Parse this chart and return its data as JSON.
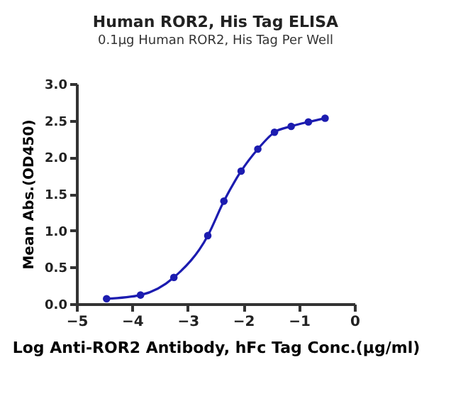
{
  "chart_data": {
    "type": "line",
    "title": "Human ROR2, His Tag ELISA",
    "subtitle": "0.1μg Human ROR2, His Tag Per Well",
    "xlabel": "Log Anti-ROR2 Antibody, hFc Tag Conc.(μg/ml)",
    "ylabel": "Mean Abs.(OD450)",
    "x": [
      -4.46,
      -3.85,
      -3.25,
      -2.64,
      -2.35,
      -2.04,
      -1.74,
      -1.44,
      -1.14,
      -0.83,
      -0.53
    ],
    "series": [
      {
        "color": "#1c1cb0",
        "values": [
          0.07,
          0.12,
          0.36,
          0.93,
          1.4,
          1.81,
          2.11,
          2.34,
          2.42,
          2.48,
          2.53
        ]
      }
    ],
    "xlim": [
      -5,
      0
    ],
    "xticks": [
      -5,
      -4,
      -3,
      -2,
      -1,
      0
    ],
    "ylim": [
      0,
      3.0
    ],
    "yticks": [
      {
        "value": 0,
        "label": "0.0"
      },
      {
        "value": 0.5,
        "label": "0.5"
      },
      {
        "value": 1,
        "label": "1.0"
      },
      {
        "value": 1.5,
        "label": "1.5"
      },
      {
        "value": 2,
        "label": "2.0"
      },
      {
        "value": 2.5,
        "label": "2.5"
      },
      {
        "value": 3,
        "label": "3.0"
      }
    ],
    "grid": false,
    "marker": "circle",
    "line_style": "solid"
  }
}
